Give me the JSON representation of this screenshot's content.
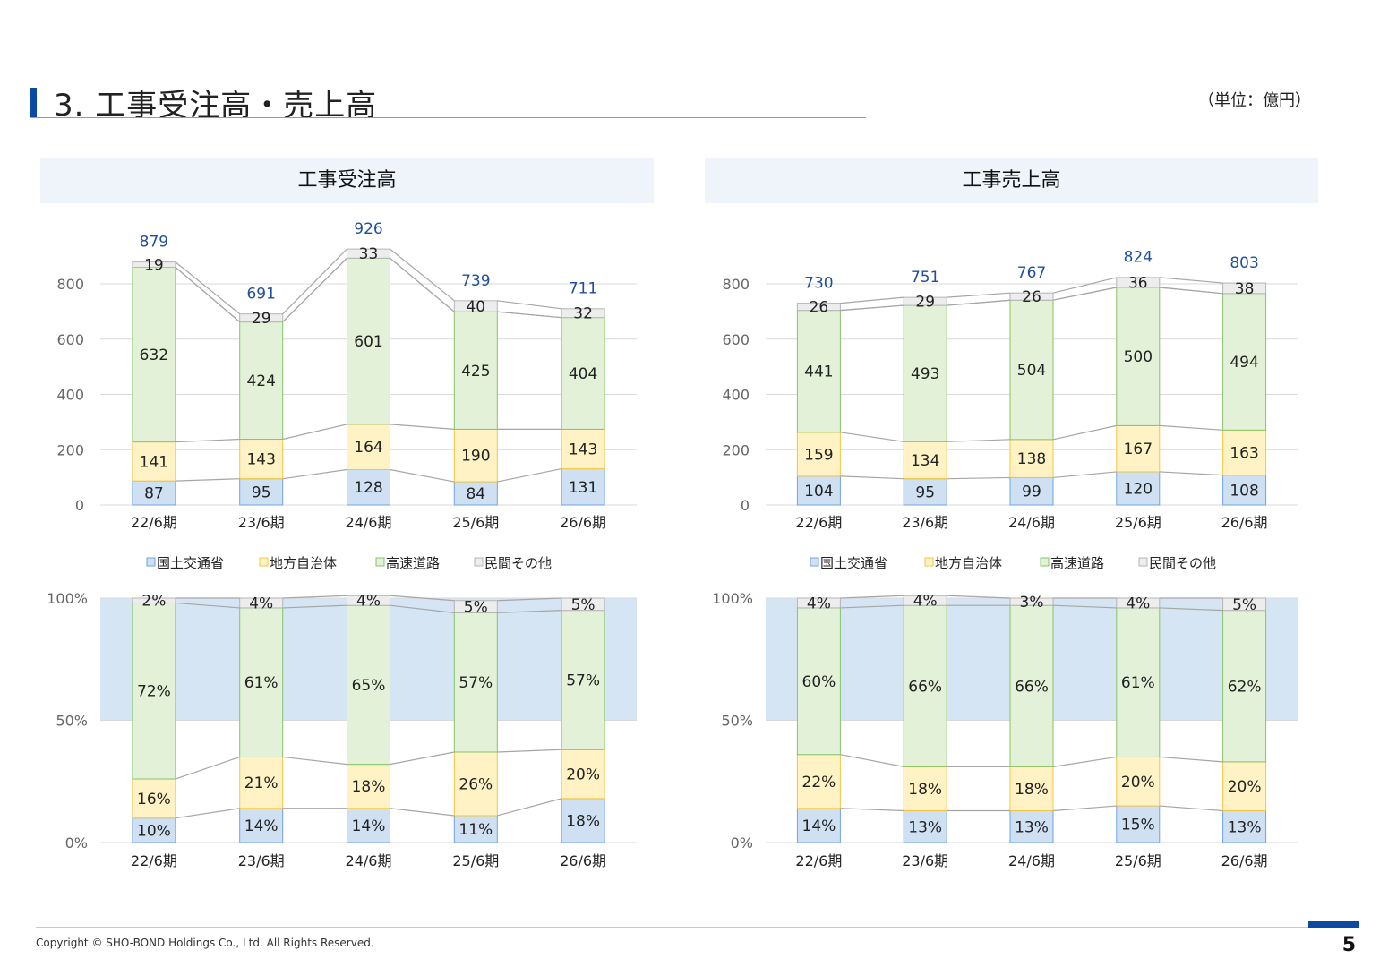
{
  "header": {
    "title": "3. 工事受注高・売上高",
    "unit": "（単位：億円）"
  },
  "panels": {
    "left_title": "工事受注高",
    "right_title": "工事売上高"
  },
  "footer": {
    "copyright": "Copyright © SHO-BOND Holdings Co., Ltd. All Rights Reserved.",
    "page": "5"
  },
  "colors": {
    "mlit": "#cfe0f3",
    "mlit_border": "#6fa3e0",
    "local": "#fff2c4",
    "local_border": "#f5c542",
    "highway": "#e3f1d8",
    "highway_border": "#86c46a",
    "private": "#ededed",
    "private_border": "#b5b5b5",
    "highlight_band": "#cfe0f1",
    "total_label": "#1f4e9c"
  },
  "chart_data": [
    {
      "type": "bar",
      "subtype": "stacked",
      "title": "工事受注高",
      "categories": [
        "22/6期",
        "23/6期",
        "24/6期",
        "25/6期",
        "26/6期"
      ],
      "series": [
        {
          "name": "国土交通省",
          "values": [
            87,
            95,
            128,
            84,
            131
          ]
        },
        {
          "name": "地方自治体",
          "values": [
            141,
            143,
            164,
            190,
            143
          ]
        },
        {
          "name": "高速道路",
          "values": [
            632,
            424,
            601,
            425,
            404
          ]
        },
        {
          "name": "民間その他",
          "values": [
            19,
            29,
            33,
            40,
            32
          ]
        }
      ],
      "totals": [
        879,
        691,
        926,
        739,
        711
      ],
      "yticks": [
        "0",
        "200",
        "400",
        "600",
        "800"
      ],
      "ylim": [
        0,
        800
      ],
      "grid": true,
      "legend": "bottom"
    },
    {
      "type": "bar",
      "subtype": "stacked",
      "title": "工事売上高",
      "categories": [
        "22/6期",
        "23/6期",
        "24/6期",
        "25/6期",
        "26/6期"
      ],
      "series": [
        {
          "name": "国土交通省",
          "values": [
            104,
            95,
            99,
            120,
            108
          ]
        },
        {
          "name": "地方自治体",
          "values": [
            159,
            134,
            138,
            167,
            163
          ]
        },
        {
          "name": "高速道路",
          "values": [
            441,
            493,
            504,
            500,
            494
          ]
        },
        {
          "name": "民間その他",
          "values": [
            26,
            29,
            26,
            36,
            38
          ]
        }
      ],
      "totals": [
        730,
        751,
        767,
        824,
        803
      ],
      "yticks": [
        "0",
        "200",
        "400",
        "600",
        "800"
      ],
      "ylim": [
        0,
        800
      ],
      "grid": true,
      "legend": "bottom"
    },
    {
      "type": "bar",
      "subtype": "stacked_percent",
      "categories": [
        "22/6期",
        "23/6期",
        "24/6期",
        "25/6期",
        "26/6期"
      ],
      "series": [
        {
          "name": "国土交通省",
          "values": [
            10,
            14,
            14,
            11,
            18
          ],
          "labels": [
            "10%",
            "14%",
            "14%",
            "11%",
            "18%"
          ]
        },
        {
          "name": "地方自治体",
          "values": [
            16,
            21,
            18,
            26,
            20
          ],
          "labels": [
            "16%",
            "21%",
            "18%",
            "26%",
            "20%"
          ]
        },
        {
          "name": "高速道路",
          "values": [
            72,
            61,
            65,
            57,
            57
          ],
          "labels": [
            "72%",
            "61%",
            "65%",
            "57%",
            "57%"
          ]
        },
        {
          "name": "民間その他",
          "values": [
            2,
            4,
            4,
            5,
            5
          ],
          "labels": [
            "2%",
            "4%",
            "4%",
            "5%",
            "5%"
          ]
        }
      ],
      "yticks": [
        "0%",
        "50%",
        "100%"
      ],
      "ylim": [
        0,
        100
      ],
      "highlight_range": [
        50,
        100
      ]
    },
    {
      "type": "bar",
      "subtype": "stacked_percent",
      "categories": [
        "22/6期",
        "23/6期",
        "24/6期",
        "25/6期",
        "26/6期"
      ],
      "series": [
        {
          "name": "国土交通省",
          "values": [
            14,
            13,
            13,
            15,
            13
          ],
          "labels": [
            "14%",
            "13%",
            "13%",
            "15%",
            "13%"
          ]
        },
        {
          "name": "地方自治体",
          "values": [
            22,
            18,
            18,
            20,
            20
          ],
          "labels": [
            "22%",
            "18%",
            "18%",
            "20%",
            "20%"
          ]
        },
        {
          "name": "高速道路",
          "values": [
            60,
            66,
            66,
            61,
            62
          ],
          "labels": [
            "60%",
            "66%",
            "66%",
            "61%",
            "62%"
          ]
        },
        {
          "name": "民間その他",
          "values": [
            4,
            4,
            3,
            4,
            5
          ],
          "labels": [
            "4%",
            "4%",
            "3%",
            "4%",
            "5%"
          ]
        }
      ],
      "yticks": [
        "0%",
        "50%",
        "100%"
      ],
      "ylim": [
        0,
        100
      ],
      "highlight_range": [
        50,
        100
      ]
    }
  ]
}
